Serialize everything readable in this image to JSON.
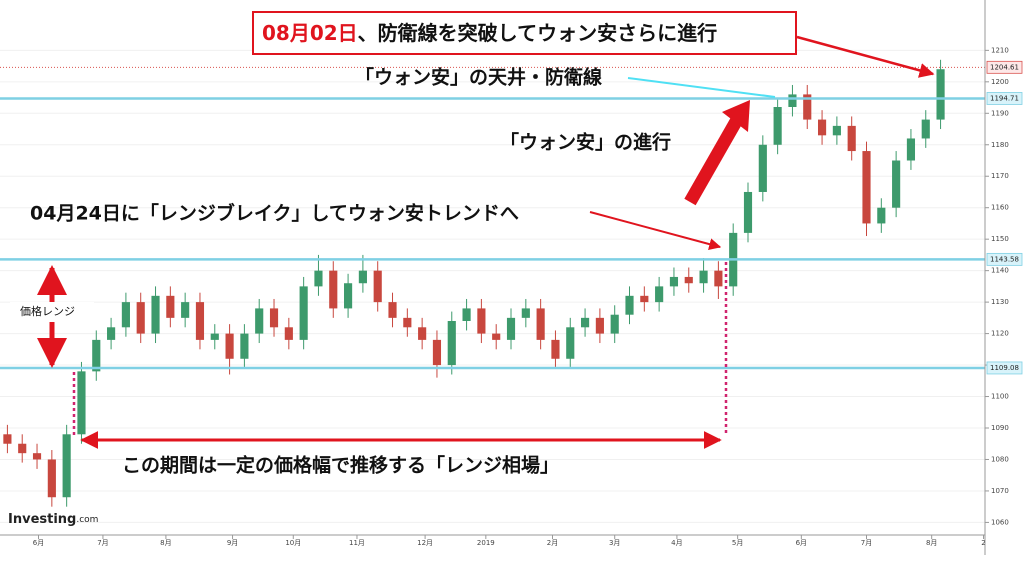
{
  "chart_data": {
    "type": "candlestick",
    "title_parts": [
      "08月02日",
      "、防衛線を突破してウォン安さらに進行"
    ],
    "annotations": [
      "「ウォン安」の天井・防衛線",
      "「ウォン安」の進行",
      "04月24日に「レンジブレイク」してウォン安トレンドへ",
      "価格レンジ",
      "この期間は一定の価格幅で推移する「レンジ相場」"
    ],
    "logo": [
      "Investing",
      ".com"
    ],
    "up_color": "#3d9a6c",
    "down_color": "#c8473e",
    "x": [
      0,
      1,
      2,
      3,
      4,
      5,
      6,
      7,
      8,
      9,
      10,
      11,
      12,
      13,
      14,
      15,
      16,
      17,
      18,
      19,
      20,
      21,
      22,
      23,
      24,
      25,
      26,
      27,
      28,
      29,
      30,
      31,
      32,
      33,
      34,
      35,
      36,
      37,
      38,
      39,
      40,
      41,
      42,
      43,
      44,
      45,
      46,
      47,
      48,
      49,
      50,
      51,
      52,
      53,
      54,
      55,
      56,
      57,
      58,
      59,
      60,
      61,
      62,
      63
    ],
    "open": [
      1088,
      1085,
      1082,
      1080,
      1068,
      1088,
      1108,
      1118,
      1122,
      1130,
      1120,
      1132,
      1125,
      1130,
      1118,
      1120,
      1112,
      1120,
      1128,
      1122,
      1118,
      1135,
      1140,
      1128,
      1136,
      1140,
      1130,
      1125,
      1122,
      1118,
      1110,
      1124,
      1128,
      1120,
      1118,
      1125,
      1128,
      1118,
      1112,
      1122,
      1125,
      1120,
      1126,
      1132,
      1130,
      1135,
      1138,
      1136,
      1140,
      1135,
      1152,
      1165,
      1180,
      1192,
      1196,
      1188,
      1183,
      1186,
      1178,
      1155,
      1160,
      1175,
      1182,
      1188
    ],
    "high": [
      1091,
      1088,
      1085,
      1083,
      1091,
      1111,
      1121,
      1125,
      1133,
      1133,
      1135,
      1135,
      1133,
      1133,
      1123,
      1123,
      1123,
      1131,
      1131,
      1125,
      1138,
      1145,
      1143,
      1139,
      1145,
      1143,
      1133,
      1128,
      1125,
      1121,
      1127,
      1131,
      1131,
      1123,
      1128,
      1131,
      1131,
      1121,
      1125,
      1128,
      1128,
      1129,
      1135,
      1135,
      1138,
      1141,
      1141,
      1144,
      1143,
      1155,
      1168,
      1183,
      1195,
      1199,
      1199,
      1191,
      1189,
      1189,
      1181,
      1163,
      1178,
      1185,
      1191,
      1207
    ],
    "low": [
      1082,
      1079,
      1077,
      1065,
      1065,
      1085,
      1105,
      1115,
      1119,
      1117,
      1117,
      1122,
      1122,
      1115,
      1115,
      1107,
      1109,
      1117,
      1119,
      1115,
      1115,
      1132,
      1125,
      1125,
      1133,
      1127,
      1122,
      1119,
      1115,
      1106,
      1107,
      1121,
      1117,
      1115,
      1115,
      1122,
      1115,
      1109,
      1109,
      1119,
      1117,
      1117,
      1123,
      1127,
      1127,
      1132,
      1133,
      1133,
      1131,
      1132,
      1149,
      1162,
      1177,
      1189,
      1185,
      1180,
      1180,
      1175,
      1151,
      1152,
      1157,
      1172,
      1179,
      1185
    ],
    "close": [
      1085,
      1082,
      1080,
      1068,
      1088,
      1108,
      1118,
      1122,
      1130,
      1120,
      1132,
      1125,
      1130,
      1118,
      1120,
      1112,
      1120,
      1128,
      1122,
      1118,
      1135,
      1140,
      1128,
      1136,
      1140,
      1130,
      1125,
      1122,
      1118,
      1110,
      1124,
      1128,
      1120,
      1118,
      1125,
      1128,
      1118,
      1112,
      1122,
      1125,
      1120,
      1126,
      1132,
      1130,
      1135,
      1138,
      1136,
      1140,
      1135,
      1152,
      1165,
      1180,
      1192,
      1196,
      1188,
      1183,
      1186,
      1178,
      1155,
      1160,
      1175,
      1182,
      1188,
      1204
    ],
    "xlim": [
      -0.5,
      66
    ],
    "xticks": [
      {
        "value": 2.1,
        "label": "6月"
      },
      {
        "value": 6.45,
        "label": "7月"
      },
      {
        "value": 10.7,
        "label": "8月"
      },
      {
        "value": 15.2,
        "label": "9月"
      },
      {
        "value": 19.3,
        "label": "10月"
      },
      {
        "value": 23.6,
        "label": "11月"
      },
      {
        "value": 28.2,
        "label": "12月"
      },
      {
        "value": 32.3,
        "label": "2019"
      },
      {
        "value": 36.8,
        "label": "2月"
      },
      {
        "value": 41.0,
        "label": "3月"
      },
      {
        "value": 45.2,
        "label": "4月"
      },
      {
        "value": 49.3,
        "label": "5月"
      },
      {
        "value": 53.6,
        "label": "6月"
      },
      {
        "value": 58.0,
        "label": "7月"
      },
      {
        "value": 62.4,
        "label": "8月"
      },
      {
        "value": 65.9,
        "label": "2"
      }
    ],
    "ylim": [
      1056,
      1226
    ],
    "yticks": [
      1060,
      1070,
      1080,
      1090,
      1100,
      1110,
      1120,
      1130,
      1140,
      1150,
      1160,
      1170,
      1180,
      1190,
      1200,
      1210
    ],
    "grid": true,
    "levels": [
      {
        "value": 1204.61,
        "color": "#d9534f",
        "style": "dotted"
      },
      {
        "value": 1194.71,
        "color": "#7fd0e4",
        "style": "solid"
      },
      {
        "value": 1143.58,
        "color": "#7fd0e4",
        "style": "solid"
      },
      {
        "value": 1109.08,
        "color": "#7fd0e4",
        "style": "solid"
      }
    ]
  }
}
